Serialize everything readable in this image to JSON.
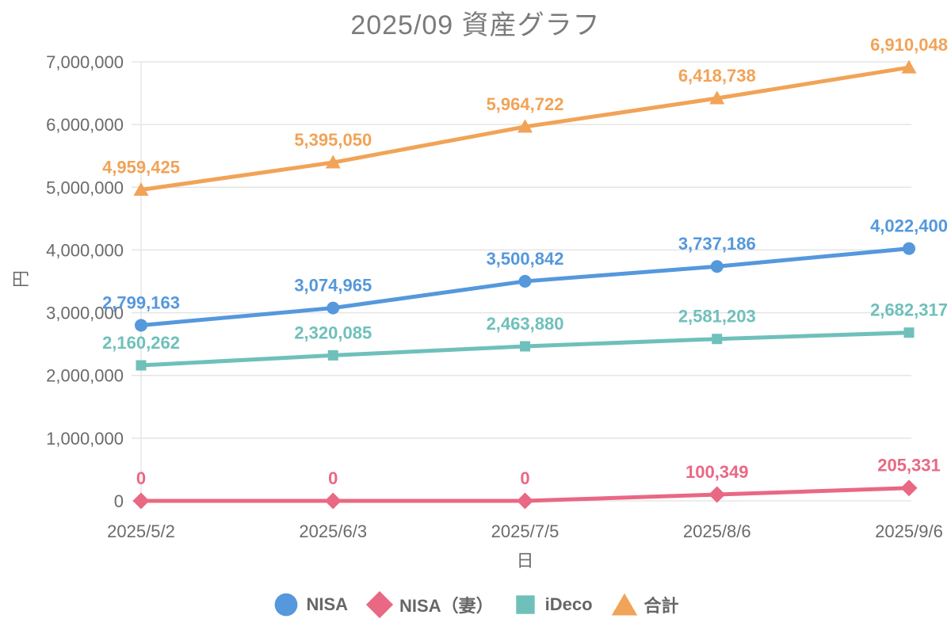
{
  "chart_data": {
    "type": "line",
    "title": "2025/09 資産グラフ",
    "xlabel": "日",
    "ylabel": "円",
    "x": [
      "2025/5/2",
      "2025/6/3",
      "2025/7/5",
      "2025/8/6",
      "2025/9/6"
    ],
    "ylim": [
      0,
      7000000
    ],
    "y_ticks": [
      "0",
      "1,000,000",
      "2,000,000",
      "3,000,000",
      "4,000,000",
      "5,000,000",
      "6,000,000",
      "7,000,000"
    ],
    "grid": "horizontal",
    "legend_position": "bottom",
    "series": [
      {
        "name": "NISA",
        "color": "#5598DC",
        "marker": "circle",
        "values": [
          2799163,
          3074965,
          3500842,
          3737186,
          4022400
        ]
      },
      {
        "name": "NISA（妻）",
        "color": "#E96884",
        "marker": "diamond",
        "values": [
          0,
          0,
          0,
          100349,
          205331
        ]
      },
      {
        "name": "iDeco",
        "color": "#6FC0BA",
        "marker": "square",
        "values": [
          2160262,
          2320085,
          2463880,
          2581203,
          2682317
        ]
      },
      {
        "name": "合計",
        "color": "#F1A357",
        "marker": "triangle",
        "values": [
          4959425,
          5395050,
          5964722,
          6418738,
          6910048
        ]
      }
    ],
    "colors": {
      "grid": "#E5E5E5",
      "axis_text": "#6B6B6B",
      "title_text": "#7B7B7B",
      "legend_text": "#666666"
    }
  }
}
